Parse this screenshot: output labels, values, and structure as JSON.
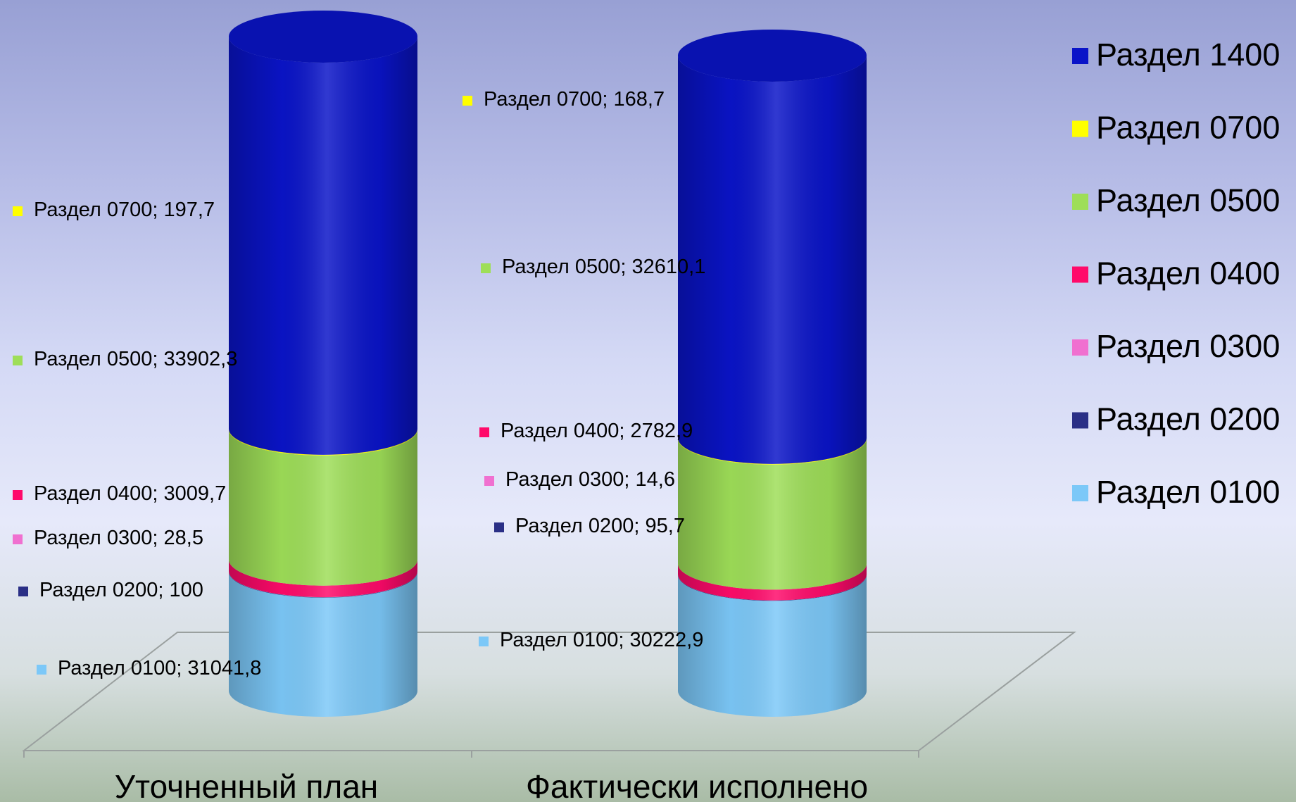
{
  "chart_data": {
    "type": "bar",
    "stacked": true,
    "style": "3d-cylinder",
    "categories": [
      "Уточненный план",
      "Фактически исполнено"
    ],
    "series": [
      {
        "name": "Раздел 0100",
        "color": "#7cc8f8",
        "values": [
          31041.8,
          30222.9
        ]
      },
      {
        "name": "Раздел 0200",
        "color": "#2a2f86",
        "values": [
          100,
          95.7
        ]
      },
      {
        "name": "Раздел 0300",
        "color": "#f070d0",
        "values": [
          28.5,
          14.6
        ]
      },
      {
        "name": "Раздел 0400",
        "color": "#ff0a6a",
        "values": [
          3009.7,
          2782.9
        ]
      },
      {
        "name": "Раздел 0500",
        "color": "#9ede58",
        "values": [
          33902.3,
          32610.1
        ]
      },
      {
        "name": "Раздел 0700",
        "color": "#ffff00",
        "values": [
          197.7,
          168.7
        ]
      },
      {
        "name": "Раздел 1400",
        "color": "#0a14c8"
      }
    ],
    "data_labels": [
      [
        "Раздел 0100; 31041,8",
        "Раздел 0100; 30222,9"
      ],
      [
        "Раздел 0200; 100",
        "Раздел 0200; 95,7"
      ],
      [
        "Раздел 0300; 28,5",
        "Раздел 0300; 14,6"
      ],
      [
        "Раздел 0400; 3009,7",
        "Раздел 0400; 2782,9"
      ],
      [
        "Раздел 0500; 33902,3",
        "Раздел 0500; 32610,1"
      ],
      [
        "Раздел 0700; 197,7",
        "Раздел 0700; 168,7"
      ],
      [
        "",
        ""
      ]
    ],
    "legend_position": "right",
    "grid": false
  }
}
